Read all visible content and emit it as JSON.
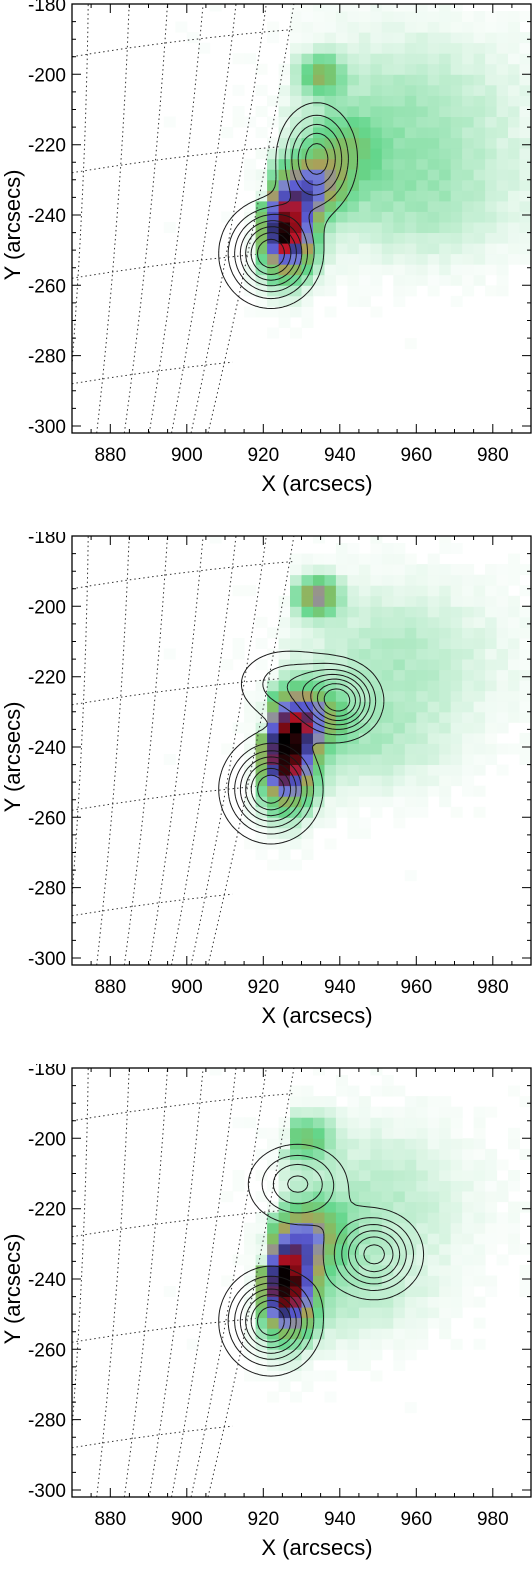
{
  "chart_data": [
    {
      "type": "heatmap",
      "title": "",
      "xlabel": "X (arcsecs)",
      "ylabel": "Y (arcsecs)",
      "xlim": [
        870,
        990
      ],
      "ylim": [
        -302,
        -180
      ],
      "xticks": [
        "880",
        "900",
        "920",
        "940",
        "960",
        "980"
      ],
      "yticks": [
        "-180",
        "-200",
        "-220",
        "-240",
        "-260",
        "-280",
        "-300"
      ],
      "grid": "dotted heliographic grid",
      "heat_sources": [
        {
          "x": 926,
          "y": -245,
          "sx": 5,
          "sy": 9,
          "a": 1.0
        },
        {
          "x": 933,
          "y": -232,
          "sx": 6,
          "sy": 6,
          "a": 0.45
        },
        {
          "x": 940,
          "y": -221,
          "sx": 7,
          "sy": 7,
          "a": 0.25
        },
        {
          "x": 935,
          "y": -200,
          "sx": 4,
          "sy": 4,
          "a": 0.38
        },
        {
          "x": 958,
          "y": -212,
          "sx": 22,
          "sy": 18,
          "a": 0.2
        },
        {
          "x": 960,
          "y": -238,
          "sx": 20,
          "sy": 12,
          "a": 0.14
        }
      ],
      "contour_sources": [
        {
          "x": 922,
          "y": -251,
          "sx": 7,
          "sy": 8,
          "a": 1.0
        },
        {
          "x": 934,
          "y": -224,
          "sx": 6,
          "sy": 9,
          "a": 0.72
        }
      ]
    },
    {
      "type": "heatmap",
      "title": "",
      "xlabel": "X (arcsecs)",
      "ylabel": "Y (arcsecs)",
      "xlim": [
        870,
        990
      ],
      "ylim": [
        -302,
        -180
      ],
      "xticks": [
        "880",
        "900",
        "920",
        "940",
        "960",
        "980"
      ],
      "yticks": [
        "-180",
        "-200",
        "-220",
        "-240",
        "-260",
        "-280",
        "-300"
      ],
      "grid": "dotted heliographic grid",
      "heat_sources": [
        {
          "x": 926,
          "y": -243,
          "sx": 5,
          "sy": 10,
          "a": 1.0
        },
        {
          "x": 932,
          "y": -231,
          "sx": 6,
          "sy": 6,
          "a": 0.45
        },
        {
          "x": 934,
          "y": -197,
          "sx": 4,
          "sy": 4,
          "a": 0.55
        },
        {
          "x": 955,
          "y": -215,
          "sx": 20,
          "sy": 16,
          "a": 0.18
        },
        {
          "x": 945,
          "y": -240,
          "sx": 16,
          "sy": 10,
          "a": 0.14
        }
      ],
      "contour_sources": [
        {
          "x": 922,
          "y": -252,
          "sx": 7,
          "sy": 8,
          "a": 1.0
        },
        {
          "x": 940,
          "y": -227,
          "sx": 6,
          "sy": 6,
          "a": 0.92
        },
        {
          "x": 926,
          "y": -222,
          "sx": 9,
          "sy": 7,
          "a": 0.35
        }
      ]
    },
    {
      "type": "heatmap",
      "title": "",
      "xlabel": "X (arcsecs)",
      "ylabel": "Y (arcsecs)",
      "xlim": [
        870,
        990
      ],
      "ylim": [
        -302,
        -180
      ],
      "xticks": [
        "880",
        "900",
        "920",
        "940",
        "960",
        "980"
      ],
      "yticks": [
        "-180",
        "-200",
        "-220",
        "-240",
        "-260",
        "-280",
        "-300"
      ],
      "grid": "dotted heliographic grid",
      "heat_sources": [
        {
          "x": 926,
          "y": -242,
          "sx": 5,
          "sy": 10,
          "a": 1.0
        },
        {
          "x": 933,
          "y": -227,
          "sx": 6,
          "sy": 7,
          "a": 0.42
        },
        {
          "x": 931,
          "y": -200,
          "sx": 5,
          "sy": 5,
          "a": 0.35
        },
        {
          "x": 950,
          "y": -218,
          "sx": 18,
          "sy": 16,
          "a": 0.17
        },
        {
          "x": 942,
          "y": -245,
          "sx": 14,
          "sy": 10,
          "a": 0.14
        }
      ],
      "contour_sources": [
        {
          "x": 922,
          "y": -252,
          "sx": 7,
          "sy": 8,
          "a": 1.0
        },
        {
          "x": 949,
          "y": -233,
          "sx": 7,
          "sy": 7,
          "a": 0.82
        },
        {
          "x": 929,
          "y": -213,
          "sx": 8,
          "sy": 7,
          "a": 0.55
        }
      ]
    }
  ]
}
